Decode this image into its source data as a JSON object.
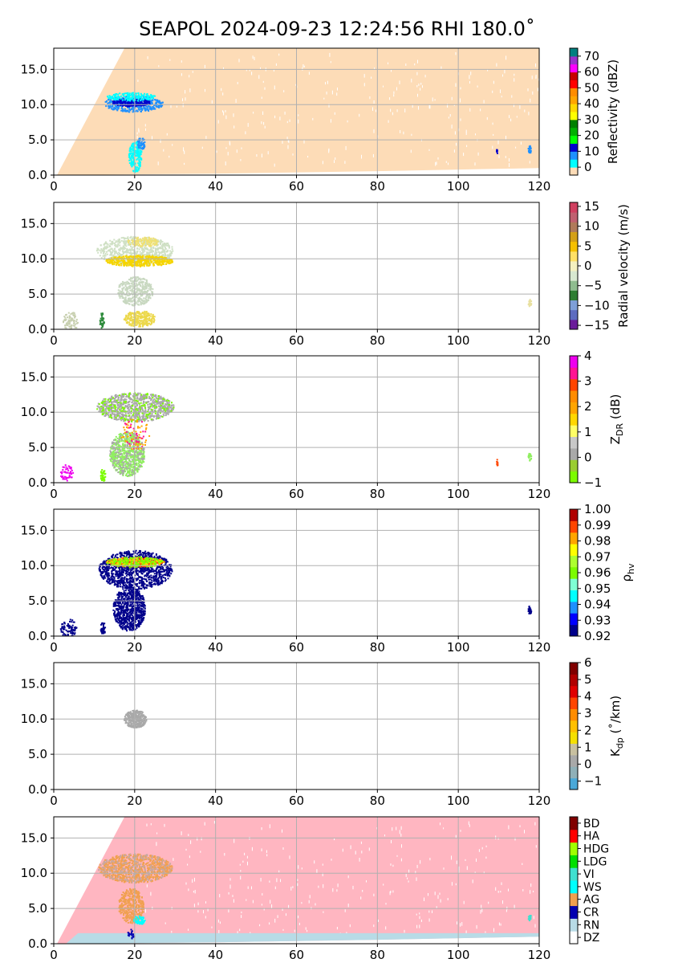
{
  "figure_title": "SEAPOL 2024-09-23 12:24:56 RHI 180.0˚",
  "chart_data": [
    {
      "type": "heatmap",
      "field": "reflectivity",
      "xlim": [
        0,
        120
      ],
      "ylim": [
        0,
        18
      ],
      "x_ticks": [
        0,
        20,
        40,
        60,
        80,
        100,
        120
      ],
      "y_ticks": [
        0.0,
        5.0,
        10.0,
        15.0
      ],
      "grid": true,
      "colorbar": {
        "label": "Reflectivity (dBZ)",
        "range": [
          -5,
          75
        ],
        "ticks": [
          0,
          10,
          20,
          30,
          40,
          50,
          60,
          70
        ],
        "colors": [
          "#fddcb7",
          "#00ffff",
          "#1e90ff",
          "#0000cd",
          "#00ff00",
          "#00b000",
          "#008000",
          "#ffff00",
          "#ffd700",
          "#ffa500",
          "#ff8c00",
          "#ff0000",
          "#c80000",
          "#ff00ff",
          "#9932cc",
          "#008080"
        ]
      },
      "features": [
        {
          "desc": "background echo field",
          "x_start": 0,
          "x_end": 120,
          "y_top": 18,
          "color": "#fddcb7"
        },
        {
          "desc": "anvil echo",
          "x": [
            11,
            28
          ],
          "y": [
            8.5,
            11.5
          ],
          "max_dBZ": 15
        },
        {
          "desc": "lower column",
          "x": [
            16,
            23
          ],
          "y": [
            0.5,
            5.5
          ],
          "max_dBZ": 5
        },
        {
          "desc": "distant echo",
          "x": [
            117,
            118
          ],
          "y": [
            3.0,
            4.5
          ]
        }
      ]
    },
    {
      "type": "heatmap",
      "field": "radial_velocity",
      "xlim": [
        0,
        120
      ],
      "ylim": [
        0,
        18
      ],
      "x_ticks": [
        0,
        20,
        40,
        60,
        80,
        100,
        120
      ],
      "y_ticks": [
        0.0,
        5.0,
        10.0,
        15.0
      ],
      "grid": true,
      "colorbar": {
        "label": "Radial velocity (m/s)",
        "range": [
          -16,
          16
        ],
        "ticks": [
          -15,
          -10,
          -5,
          0,
          5,
          10,
          15
        ],
        "colors": [
          "#6a1b9a",
          "#5c6bc0",
          "#7e9fd8",
          "#2e7d32",
          "#8fbc8f",
          "#d8e8d0",
          "#f4f0c0",
          "#ffe066",
          "#f5c000",
          "#d4a017",
          "#b07a5a",
          "#c06070",
          "#d04060"
        ]
      },
      "features": [
        {
          "desc": "anvil",
          "x": [
            11,
            29
          ],
          "y": [
            8.0,
            13.5
          ],
          "dominant": "light green to yellow"
        },
        {
          "desc": "lower column",
          "x": [
            15,
            26
          ],
          "y": [
            0,
            7
          ]
        },
        {
          "desc": "distant echo",
          "x": [
            117,
            118
          ],
          "y": [
            3.0,
            4.5
          ]
        }
      ]
    },
    {
      "type": "heatmap",
      "field": "differential_reflectivity",
      "xlim": [
        0,
        120
      ],
      "ylim": [
        0,
        18
      ],
      "x_ticks": [
        0,
        20,
        40,
        60,
        80,
        100,
        120
      ],
      "y_ticks": [
        0.0,
        5.0,
        10.0,
        15.0
      ],
      "grid": true,
      "colorbar": {
        "label": "Z",
        "label_subscript": "DR",
        "label_suffix": " (dB)",
        "range": [
          -1,
          4
        ],
        "ticks": [
          -1,
          0,
          1,
          2,
          3,
          4
        ],
        "colors": [
          "#7cfc00",
          "#9acd32",
          "#a9a9a9",
          "#c8c8c8",
          "#ffff66",
          "#ffd700",
          "#ffa500",
          "#ff8c00",
          "#ff4500",
          "#ff1493",
          "#ee00ee"
        ]
      },
      "features": [
        {
          "desc": "anvil",
          "x": [
            11,
            30
          ],
          "y": [
            8.0,
            13.5
          ],
          "dominant": "gray"
        },
        {
          "desc": "lower column",
          "x": [
            12,
            26
          ],
          "y": [
            0,
            8
          ],
          "dominant": "light green"
        }
      ]
    },
    {
      "type": "heatmap",
      "field": "correlation_coefficient",
      "xlim": [
        0,
        120
      ],
      "ylim": [
        0,
        18
      ],
      "x_ticks": [
        0,
        20,
        40,
        60,
        80,
        100,
        120
      ],
      "y_ticks": [
        0.0,
        5.0,
        10.0,
        15.0
      ],
      "grid": true,
      "colorbar": {
        "label": "ρ",
        "label_subscript": "hv",
        "label_suffix": "",
        "range": [
          0.92,
          1.0
        ],
        "ticks": [
          0.92,
          0.93,
          0.94,
          0.95,
          0.96,
          0.97,
          0.98,
          0.99,
          1.0
        ],
        "colors": [
          "#00008b",
          "#0000ff",
          "#1e90ff",
          "#00ffff",
          "#7fffd4",
          "#7cfc00",
          "#adff2f",
          "#ffff00",
          "#ffa500",
          "#ff4500",
          "#b00000"
        ]
      },
      "features": [
        {
          "desc": "bright band in anvil",
          "x": [
            11,
            28
          ],
          "y": [
            9.5,
            11.5
          ],
          "max_rho": 0.99
        },
        {
          "desc": "column",
          "x": [
            14,
            26
          ],
          "y": [
            0,
            13.5
          ],
          "dominant": "dark blue"
        }
      ]
    },
    {
      "type": "heatmap",
      "field": "specific_differential_phase",
      "xlim": [
        0,
        120
      ],
      "ylim": [
        0,
        18
      ],
      "x_ticks": [
        0,
        20,
        40,
        60,
        80,
        100,
        120
      ],
      "y_ticks": [
        0.0,
        5.0,
        10.0,
        15.0
      ],
      "grid": true,
      "colorbar": {
        "label": "K",
        "label_subscript": "dp",
        "label_suffix": " (˚/km)",
        "range": [
          -1.5,
          6
        ],
        "ticks": [
          -1,
          0,
          1,
          2,
          3,
          4,
          5,
          6
        ],
        "colors": [
          "#4aa8d8",
          "#8fb0b8",
          "#a9a9a9",
          "#c8c0a0",
          "#f5e000",
          "#ffc000",
          "#ff8c00",
          "#ff4500",
          "#e00000",
          "#b00000",
          "#800000"
        ]
      },
      "features": [
        {
          "desc": "gray blob",
          "x": [
            17,
            24
          ],
          "y": [
            8.5,
            11.5
          ],
          "value": 0
        }
      ]
    },
    {
      "type": "heatmap",
      "field": "hydrometeor_classification",
      "xlim": [
        0,
        120
      ],
      "ylim": [
        0,
        18
      ],
      "x_ticks": [
        0,
        20,
        40,
        60,
        80,
        100,
        120
      ],
      "y_ticks": [
        0.0,
        5.0,
        10.0,
        15.0
      ],
      "grid": true,
      "colorbar": {
        "label": "",
        "categories": [
          "DZ",
          "RN",
          "CR",
          "AG",
          "WS",
          "VI",
          "LDG",
          "HDG",
          "HA",
          "BD"
        ],
        "colors": [
          "#ffffff",
          "#b8dbe6",
          "#0000b0",
          "#f0a050",
          "#00ffff",
          "#40e0d0",
          "#00e000",
          "#a0ff00",
          "#ff0000",
          "#800000"
        ]
      },
      "features": [
        {
          "desc": "pink background",
          "x_start": 0,
          "x_end": 120,
          "y_top": 18,
          "color": "#ffb6c1"
        },
        {
          "desc": "rain layer",
          "x": [
            3,
            120
          ],
          "y": [
            0,
            1.5
          ],
          "class": "RN"
        },
        {
          "desc": "aggregates in anvil",
          "x": [
            11,
            29
          ],
          "y": [
            8,
            13.5
          ],
          "class": "AG"
        },
        {
          "desc": "column",
          "x": [
            16,
            24
          ],
          "y": [
            0,
            8
          ],
          "class": "AG/WS"
        }
      ]
    }
  ]
}
